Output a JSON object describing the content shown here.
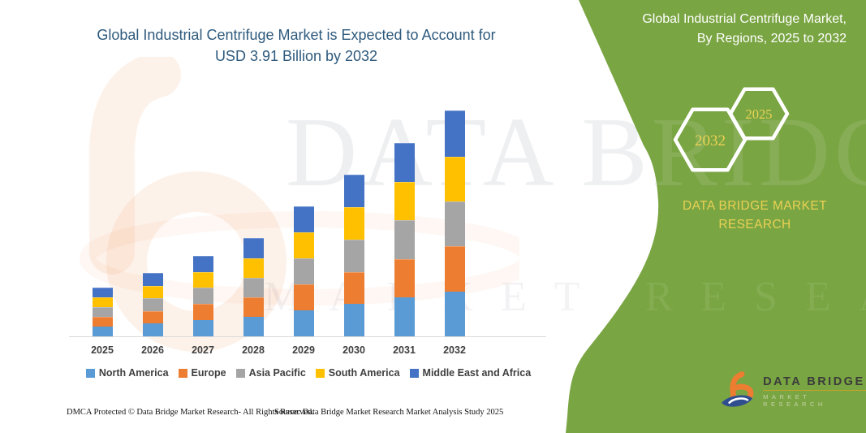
{
  "title": {
    "line1": "Global Industrial Centrifuge Market is Expected to Account for",
    "line2": "USD 3.91 Billion by 2032"
  },
  "panel": {
    "heading_line1": "Global Industrial Centrifuge Market,",
    "heading_line2": "By Regions, 2025 to 2032",
    "hex_large_year": "2032",
    "hex_small_year": "2025",
    "brand_line1": "DATA BRIDGE MARKET",
    "brand_line2": "RESEARCH",
    "bg_color": "#7AA543",
    "accent_text_color": "#E9D154"
  },
  "logo": {
    "title": "DATA BRIDGE",
    "subtitle": "MARKET RESEARCH"
  },
  "watermark": {
    "line1": "DATA BRIDGE",
    "line2": "MARKET RESEARCH"
  },
  "footer": {
    "left": "DMCA Protected © Data Bridge Market Research- All Rights Reserved.",
    "right": "Source: Data Bridge Market Research Market Analysis Study 2025"
  },
  "chart_data": {
    "type": "bar",
    "stacked": true,
    "title": "Global Industrial Centrifuge Market is Expected to Account for USD 3.91 Billion by 2032",
    "unit": "USD Billion",
    "categories": [
      "2025",
      "2026",
      "2027",
      "2028",
      "2029",
      "2030",
      "2031",
      "2032"
    ],
    "series": [
      {
        "name": "North America",
        "color": "#5B9BD5",
        "values": [
          0.17,
          0.22,
          0.28,
          0.34,
          0.45,
          0.56,
          0.67,
          0.78
        ]
      },
      {
        "name": "Europe",
        "color": "#ED7D31",
        "values": [
          0.17,
          0.22,
          0.28,
          0.34,
          0.45,
          0.56,
          0.67,
          0.78
        ]
      },
      {
        "name": "Asia Pacific",
        "color": "#A5A5A5",
        "values": [
          0.17,
          0.22,
          0.28,
          0.34,
          0.45,
          0.56,
          0.67,
          0.78
        ]
      },
      {
        "name": "South America",
        "color": "#FFC000",
        "values": [
          0.17,
          0.22,
          0.28,
          0.34,
          0.45,
          0.56,
          0.67,
          0.78
        ]
      },
      {
        "name": "Middle East and Africa",
        "color": "#4472C4",
        "values": [
          0.17,
          0.22,
          0.28,
          0.34,
          0.45,
          0.56,
          0.67,
          0.79
        ]
      }
    ],
    "totals": [
      0.85,
      1.1,
      1.4,
      1.7,
      2.25,
      2.8,
      3.35,
      3.91
    ],
    "ylim": [
      0,
      4
    ],
    "grid": false,
    "legend_position": "bottom"
  }
}
